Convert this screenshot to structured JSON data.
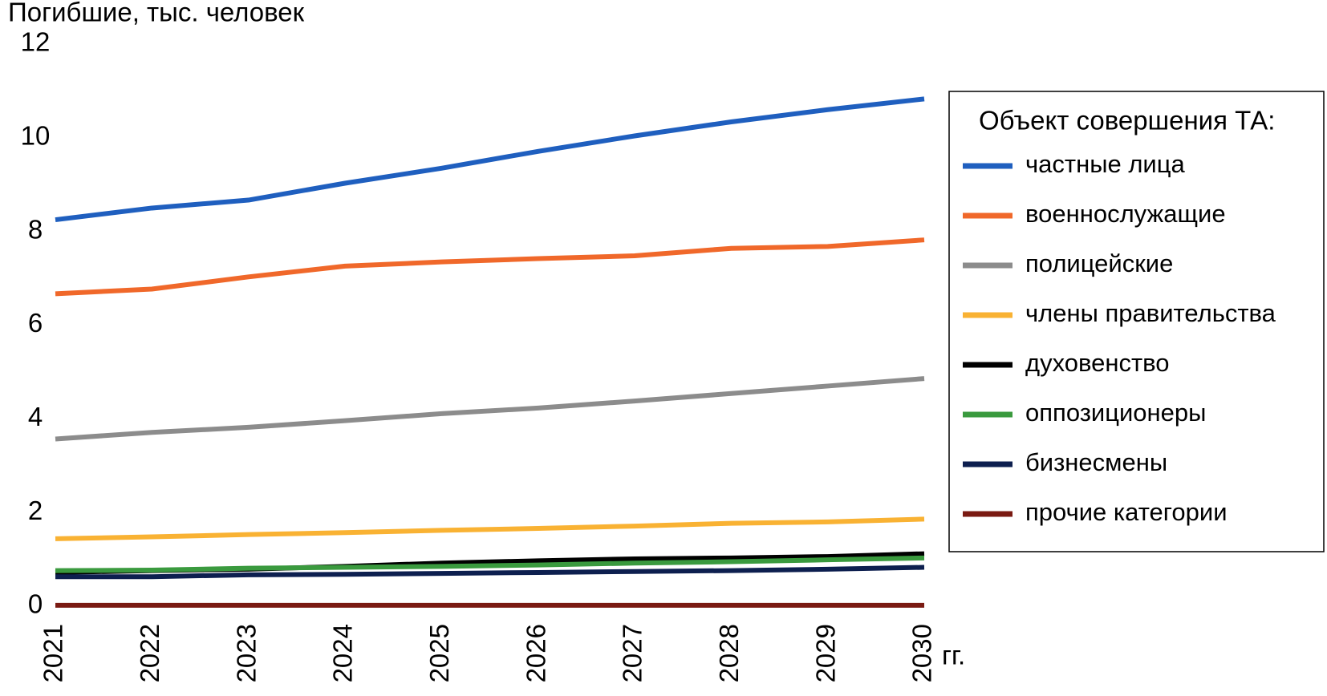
{
  "chart_data": {
    "type": "line",
    "y_label": "Погибшие, тыс. человек",
    "x_label": "гг.",
    "legend_title": "Объект совершения ТА:",
    "categories": [
      "2021",
      "2022",
      "2023",
      "2024",
      "2025",
      "2026",
      "2027",
      "2028",
      "2029",
      "2030"
    ],
    "ylim": [
      0,
      12
    ],
    "yticks": [
      0,
      2,
      4,
      6,
      8,
      10,
      12
    ],
    "grid": false,
    "legend": "right",
    "series": [
      {
        "name": "частные лица",
        "color": "#1f5fbf",
        "values": [
          8.25,
          8.5,
          8.67,
          9.03,
          9.35,
          9.71,
          10.04,
          10.34,
          10.6,
          10.83
        ]
      },
      {
        "name": "военнослужащие",
        "color": "#f0682a",
        "values": [
          6.67,
          6.77,
          7.03,
          7.26,
          7.35,
          7.42,
          7.48,
          7.64,
          7.68,
          7.82
        ]
      },
      {
        "name": "полицейские",
        "color": "#8c8c8c",
        "values": [
          3.57,
          3.71,
          3.82,
          3.96,
          4.11,
          4.23,
          4.38,
          4.54,
          4.7,
          4.86
        ]
      },
      {
        "name": "члены правительства",
        "color": "#f9b233",
        "values": [
          1.44,
          1.48,
          1.53,
          1.57,
          1.62,
          1.66,
          1.71,
          1.77,
          1.8,
          1.86
        ]
      },
      {
        "name": "духовенство",
        "color": "#000000",
        "values": [
          0.72,
          0.76,
          0.79,
          0.85,
          0.92,
          0.97,
          1.01,
          1.03,
          1.06,
          1.12
        ]
      },
      {
        "name": "оппозиционеры",
        "color": "#3a9a3e",
        "values": [
          0.76,
          0.77,
          0.81,
          0.83,
          0.85,
          0.88,
          0.92,
          0.95,
          0.99,
          1.03
        ]
      },
      {
        "name": "бизнесмены",
        "color": "#0d1f4f",
        "values": [
          0.63,
          0.63,
          0.67,
          0.68,
          0.7,
          0.72,
          0.74,
          0.76,
          0.79,
          0.83
        ]
      },
      {
        "name": "прочие категории",
        "color": "#7a1a12",
        "values": [
          0.02,
          0.02,
          0.02,
          0.02,
          0.02,
          0.02,
          0.02,
          0.02,
          0.02,
          0.02
        ]
      }
    ]
  }
}
